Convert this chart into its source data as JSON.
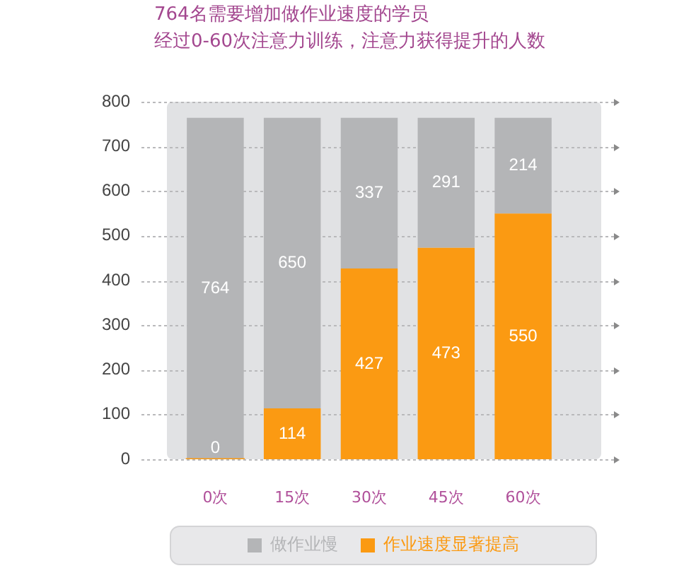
{
  "chart_data": {
    "type": "bar",
    "title": "764名需要增加做作业速度的学员",
    "subtitle": "经过0-60次注意力训练，注意力获得提升的人数",
    "categories": [
      "0次",
      "15次",
      "30次",
      "45次",
      "60次"
    ],
    "series": [
      {
        "name": "作业速度显著提高",
        "color": "#fb9a12",
        "values": [
          0,
          114,
          427,
          473,
          550
        ]
      },
      {
        "name": "做作业慢",
        "color": "#b4b5b7",
        "values": [
          764,
          650,
          337,
          291,
          214
        ]
      }
    ],
    "stacked": true,
    "ylim": [
      0,
      800
    ],
    "yticks": [
      0,
      100,
      200,
      300,
      400,
      500,
      600,
      700,
      800
    ],
    "grid": "y",
    "legend": "bottom",
    "data_labels": true
  }
}
